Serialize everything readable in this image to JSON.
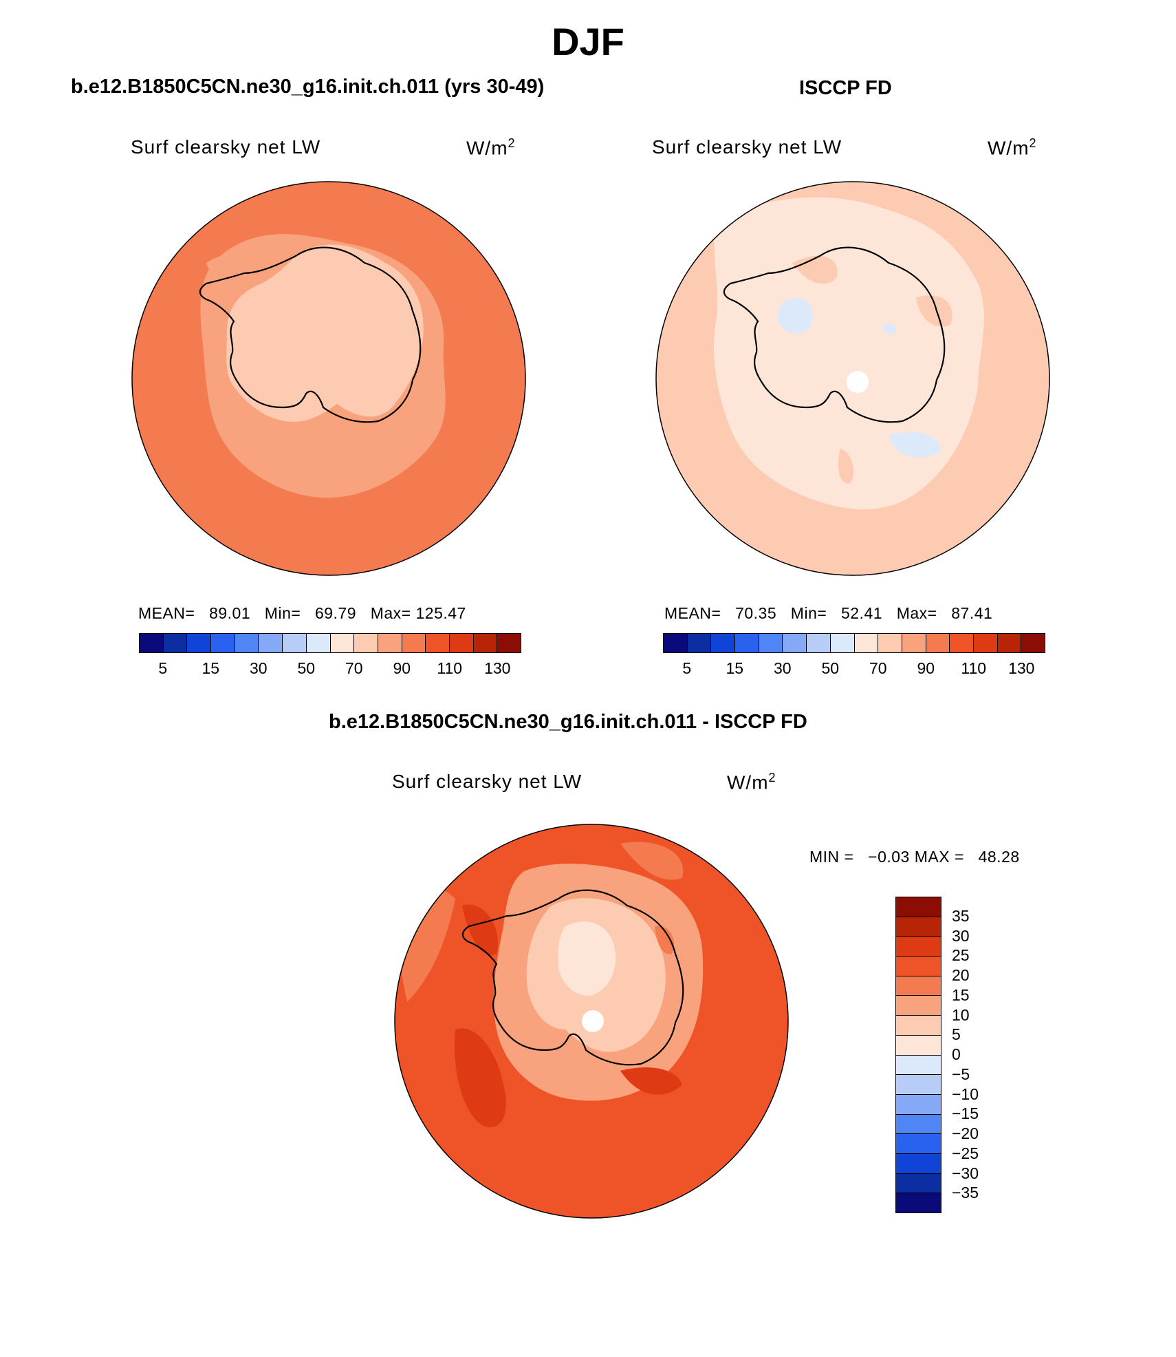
{
  "page": {
    "title": "DJF",
    "left_panel_title": "b.e12.B1850C5CN.ne30_g16.init.ch.011 (yrs 30-49)",
    "right_panel_title": "ISCCP FD",
    "diff_panel_title": "b.e12.B1850C5CN.ne30_g16.init.ch.011 - ISCCP FD"
  },
  "panels": {
    "model": {
      "variable": "Surf clearsky net LW",
      "units": "W/m",
      "units_exp": "2",
      "mean_label": "MEAN=",
      "mean": "89.01",
      "min_label": "Min=",
      "min": "69.79",
      "max_label": "Max=",
      "max": "125.47"
    },
    "obs": {
      "variable": "Surf clearsky net LW",
      "units": "W/m",
      "units_exp": "2",
      "mean_label": "MEAN=",
      "mean": "70.35",
      "min_label": "Min=",
      "min": "52.41",
      "max_label": "Max=",
      "max": "87.41"
    },
    "diff": {
      "variable": "Surf clearsky net LW",
      "units": "W/m",
      "units_exp": "2",
      "min_label": "MIN =",
      "min": "−0.03",
      "max_label": "MAX =",
      "max": "48.28"
    }
  },
  "colorbars": {
    "abs_colors": [
      "#0a0a7a",
      "#0b2fa3",
      "#0f44d6",
      "#2a62f0",
      "#4f85f5",
      "#86a9f7",
      "#b7cdf8",
      "#dce9fa",
      "#fde6d8",
      "#fccbb2",
      "#f9a27e",
      "#f47a4f",
      "#ee5428",
      "#de3a14",
      "#b82506",
      "#8c0d04"
    ],
    "abs_ticks": [
      "5",
      "15",
      "30",
      "50",
      "70",
      "90",
      "110",
      "130"
    ],
    "diff_colors": [
      "#8c0d04",
      "#b82506",
      "#de3a14",
      "#ee5428",
      "#f47a4f",
      "#f9a27e",
      "#fccbb2",
      "#fde6d8",
      "#dce9fa",
      "#b7cdf8",
      "#86a9f7",
      "#4f85f5",
      "#2a62f0",
      "#0f44d6",
      "#0b2fa3",
      "#0a0a7a"
    ],
    "diff_ticks": [
      "35",
      "30",
      "25",
      "20",
      "15",
      "10",
      "5",
      "0",
      "−5",
      "−10",
      "−15",
      "−20",
      "−25",
      "−30",
      "−35"
    ]
  },
  "map_colors": {
    "model_ocean": "#f47a4f",
    "model_mid": "#f9a27e",
    "model_land": "#fccbb2",
    "obs_light": "#fde6d8",
    "obs_mid": "#fccbb2",
    "obs_neg": "#dce9fa",
    "diff_ocean": "#ee5428",
    "diff_dark": "#de3a14",
    "diff_mid": "#f47a4f",
    "diff_light": "#f9a27e",
    "diff_lighter": "#fccbb2",
    "diff_lightest": "#fde6d8"
  }
}
